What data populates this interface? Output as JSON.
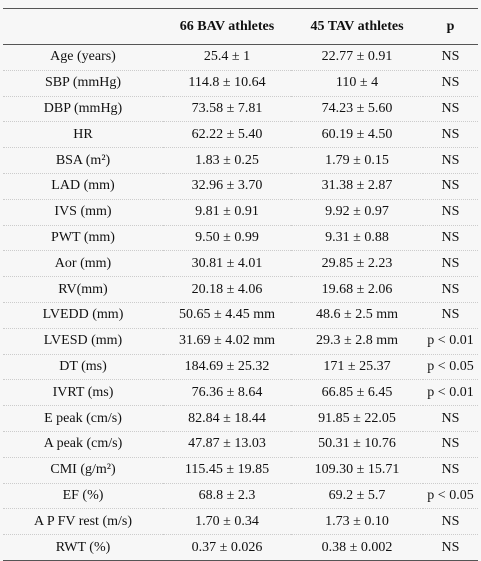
{
  "table": {
    "columns": [
      "66 BAV athletes",
      "45 TAV athletes",
      "p"
    ],
    "rows": [
      [
        "Age (years)",
        "25.4 ± 1",
        "22.77 ± 0.91",
        "NS"
      ],
      [
        "SBP (mmHg)",
        "114.8 ± 10.64",
        "110 ± 4",
        "NS"
      ],
      [
        "DBP (mmHg)",
        "73.58 ± 7.81",
        "74.23 ± 5.60",
        "NS"
      ],
      [
        "HR",
        "62.22 ± 5.40",
        "60.19 ± 4.50",
        "NS"
      ],
      [
        "BSA (m²)",
        "1.83 ± 0.25",
        "1.79 ± 0.15",
        "NS"
      ],
      [
        "LAD (mm)",
        "32.96 ± 3.70",
        "31.38 ± 2.87",
        "NS"
      ],
      [
        "IVS (mm)",
        "9.81 ± 0.91",
        "9.92 ± 0.97",
        "NS"
      ],
      [
        "PWT (mm)",
        "9.50 ± 0.99",
        "9.31 ± 0.88",
        "NS"
      ],
      [
        "Aor (mm)",
        "30.81 ± 4.01",
        "29.85 ± 2.23",
        "NS"
      ],
      [
        "RV(mm)",
        "20.18 ± 4.06",
        "19.68 ± 2.06",
        "NS"
      ],
      [
        "LVEDD (mm)",
        "50.65 ± 4.45 mm",
        "48.6 ± 2.5 mm",
        "NS"
      ],
      [
        "LVESD (mm)",
        "31.69 ± 4.02 mm",
        "29.3 ± 2.8 mm",
        "p < 0.01"
      ],
      [
        "DT (ms)",
        "184.69 ± 25.32",
        "171 ± 25.37",
        "p < 0.05"
      ],
      [
        "IVRT (ms)",
        "76.36 ± 8.64",
        "66.85 ± 6.45",
        "p < 0.01"
      ],
      [
        "E peak (cm/s)",
        "82.84 ± 18.44",
        "91.85 ± 22.05",
        "NS"
      ],
      [
        "A peak (cm/s)",
        "47.87 ± 13.03",
        "50.31 ± 10.76",
        "NS"
      ],
      [
        "CMI (g/m²)",
        "115.45 ± 19.85",
        "109.30 ± 15.71",
        "NS"
      ],
      [
        "EF (%)",
        "68.8 ± 2.3",
        "69.2 ± 5.7",
        "p < 0.05"
      ],
      [
        "A P FV rest (m/s)",
        "1.70 ± 0.34",
        "1.73 ± 0.10",
        "NS"
      ],
      [
        "RWT (%)",
        "0.37 ± 0.026",
        "0.38 ± 0.002",
        "NS"
      ]
    ]
  }
}
